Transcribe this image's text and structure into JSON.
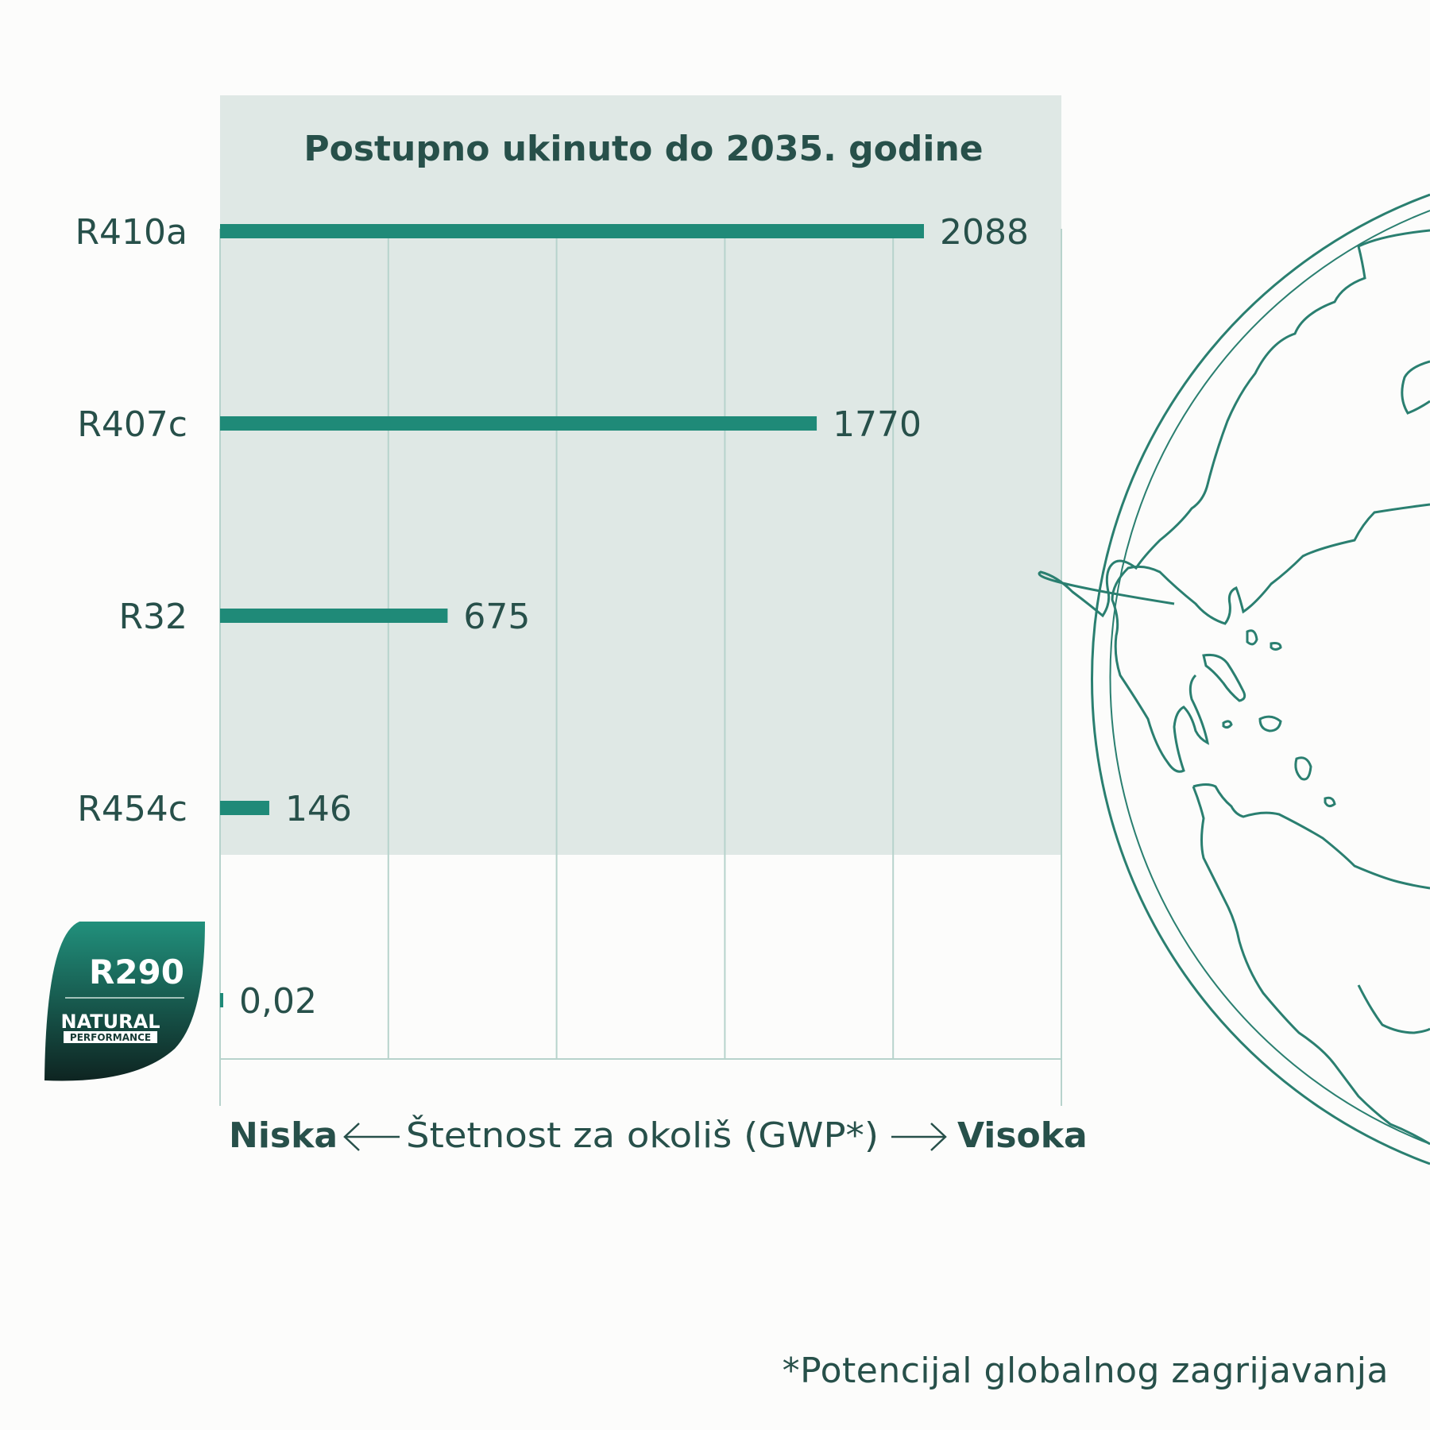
{
  "chart_data": {
    "type": "bar",
    "orientation": "horizontal",
    "title": "Postupno ukinuto do 2035. godine",
    "categories": [
      "R410a",
      "R407c",
      "R32",
      "R454c",
      "R290"
    ],
    "values": [
      2088,
      1770,
      675,
      146,
      0.02
    ],
    "value_labels": [
      "2088",
      "1770",
      "675",
      "146",
      "0,02"
    ],
    "xlim": [
      0,
      2500
    ],
    "grid": true,
    "shaded_group": [
      "R410a",
      "R407c",
      "R32",
      "R454c"
    ],
    "axis": {
      "left_label": "Niska",
      "center_label": "Štetnost za okoliš (GWP*)",
      "right_label": "Visoka"
    }
  },
  "badge": {
    "name": "R290",
    "line1": "NATURAL",
    "line2": "PERFORMANCE"
  },
  "footnote": "*Potencijal globalnog zagrijavanja",
  "colors": {
    "bar": "#1f8a78",
    "shade": "#dfe8e5",
    "grid": "#b7d3cc",
    "text": "#27504a",
    "globe": "#2a7f70",
    "badge_top": "#21907c",
    "badge_bottom": "#0e2421"
  },
  "icons": {
    "globe": "globe-icon",
    "badge": "leaf-badge-icon"
  }
}
